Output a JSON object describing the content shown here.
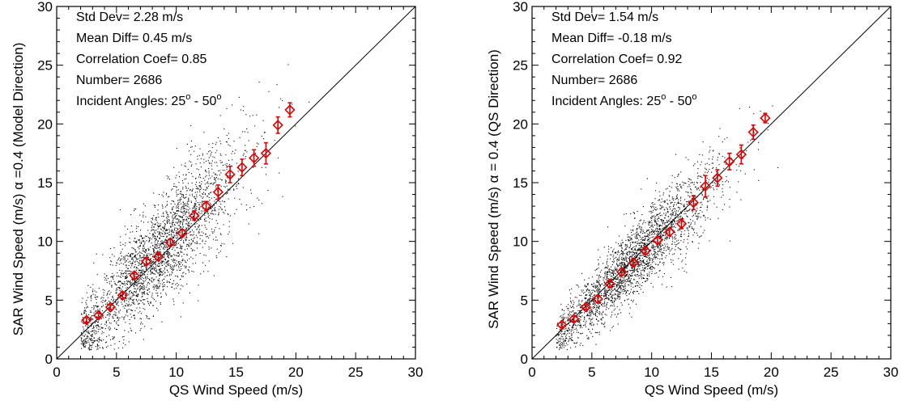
{
  "chart_data": [
    {
      "type": "scatter",
      "xlabel": "QS Wind Speed (m/s)",
      "ylabel": "SAR Wind Speed (m/s) α =0.4 (Model Direction)",
      "xlim": [
        0,
        30
      ],
      "ylim": [
        0,
        30
      ],
      "xticks": [
        "0",
        "5",
        "10",
        "15",
        "20",
        "25",
        "30"
      ],
      "yticks": [
        "0",
        "5",
        "10",
        "15",
        "20",
        "25",
        "30"
      ],
      "stats": [
        "Std Dev=  2.28 m/s",
        "Mean Diff=  0.45 m/s",
        "Correlation Coef= 0.85",
        "Number=  2686"
      ],
      "angles": {
        "prefix": "Incident Angles: 25",
        "mid": " - 50",
        "sup": "o"
      },
      "reference_line": "y = x",
      "colors": {
        "scatter": "#000000",
        "binned": "#e00000"
      },
      "binned_means": {
        "x": [
          2.5,
          3.5,
          4.5,
          5.5,
          6.5,
          7.5,
          8.5,
          9.5,
          10.5,
          11.5,
          12.5,
          13.5,
          14.5,
          15.5,
          16.5,
          17.5,
          18.5,
          19.5
        ],
        "y": [
          3.3,
          3.7,
          4.4,
          5.4,
          7.1,
          8.3,
          8.7,
          9.9,
          10.7,
          12.2,
          13.0,
          14.2,
          15.7,
          16.3,
          17.1,
          17.5,
          19.9,
          21.2
        ],
        "err": [
          0.2,
          0.2,
          0.2,
          0.3,
          0.3,
          0.3,
          0.3,
          0.3,
          0.3,
          0.4,
          0.4,
          0.6,
          0.7,
          0.7,
          0.7,
          0.9,
          0.7,
          0.6
        ]
      },
      "scatter_model": {
        "n": 2686,
        "x_mean": 8.5,
        "x_sd": 3.6,
        "x_min": 2,
        "x_max": 22,
        "slope": 1.06,
        "intercept": 0.0,
        "noise": 2.2
      }
    },
    {
      "type": "scatter",
      "xlabel": "QS Wind Speed (m/s)",
      "ylabel": "SAR Wind Speed (m/s) α = 0.4 (QS Direction)",
      "xlim": [
        0,
        30
      ],
      "ylim": [
        0,
        30
      ],
      "xticks": [
        "0",
        "5",
        "10",
        "15",
        "20",
        "25",
        "30"
      ],
      "yticks": [
        "0",
        "5",
        "10",
        "15",
        "20",
        "25",
        "30"
      ],
      "stats": [
        "Std Dev=  1.54 m/s",
        "Mean Diff= -0.18 m/s",
        "Correlation Coef= 0.92",
        "Number=  2686"
      ],
      "angles": {
        "prefix": "Incident Angles: 25",
        "mid": " - 50",
        "sup": "o"
      },
      "reference_line": "y = x",
      "colors": {
        "scatter": "#000000",
        "binned": "#e00000"
      },
      "binned_means": {
        "x": [
          2.5,
          3.5,
          4.5,
          5.5,
          6.5,
          7.5,
          8.5,
          9.5,
          10.5,
          11.5,
          12.5,
          13.5,
          14.5,
          15.5,
          16.5,
          17.5,
          18.5,
          19.5
        ],
        "y": [
          2.9,
          3.4,
          4.4,
          5.1,
          6.4,
          7.4,
          8.2,
          9.2,
          10.1,
          10.8,
          11.5,
          13.3,
          14.7,
          15.4,
          16.8,
          17.4,
          19.3,
          20.5
        ],
        "err": [
          0.2,
          0.2,
          0.2,
          0.3,
          0.3,
          0.3,
          0.3,
          0.3,
          0.3,
          0.3,
          0.4,
          0.6,
          0.9,
          0.7,
          0.7,
          0.8,
          0.6,
          0.4
        ]
      },
      "scatter_model": {
        "n": 2686,
        "x_mean": 8.5,
        "x_sd": 3.6,
        "x_min": 2,
        "x_max": 22,
        "slope": 1.0,
        "intercept": -0.18,
        "noise": 1.5
      }
    }
  ]
}
